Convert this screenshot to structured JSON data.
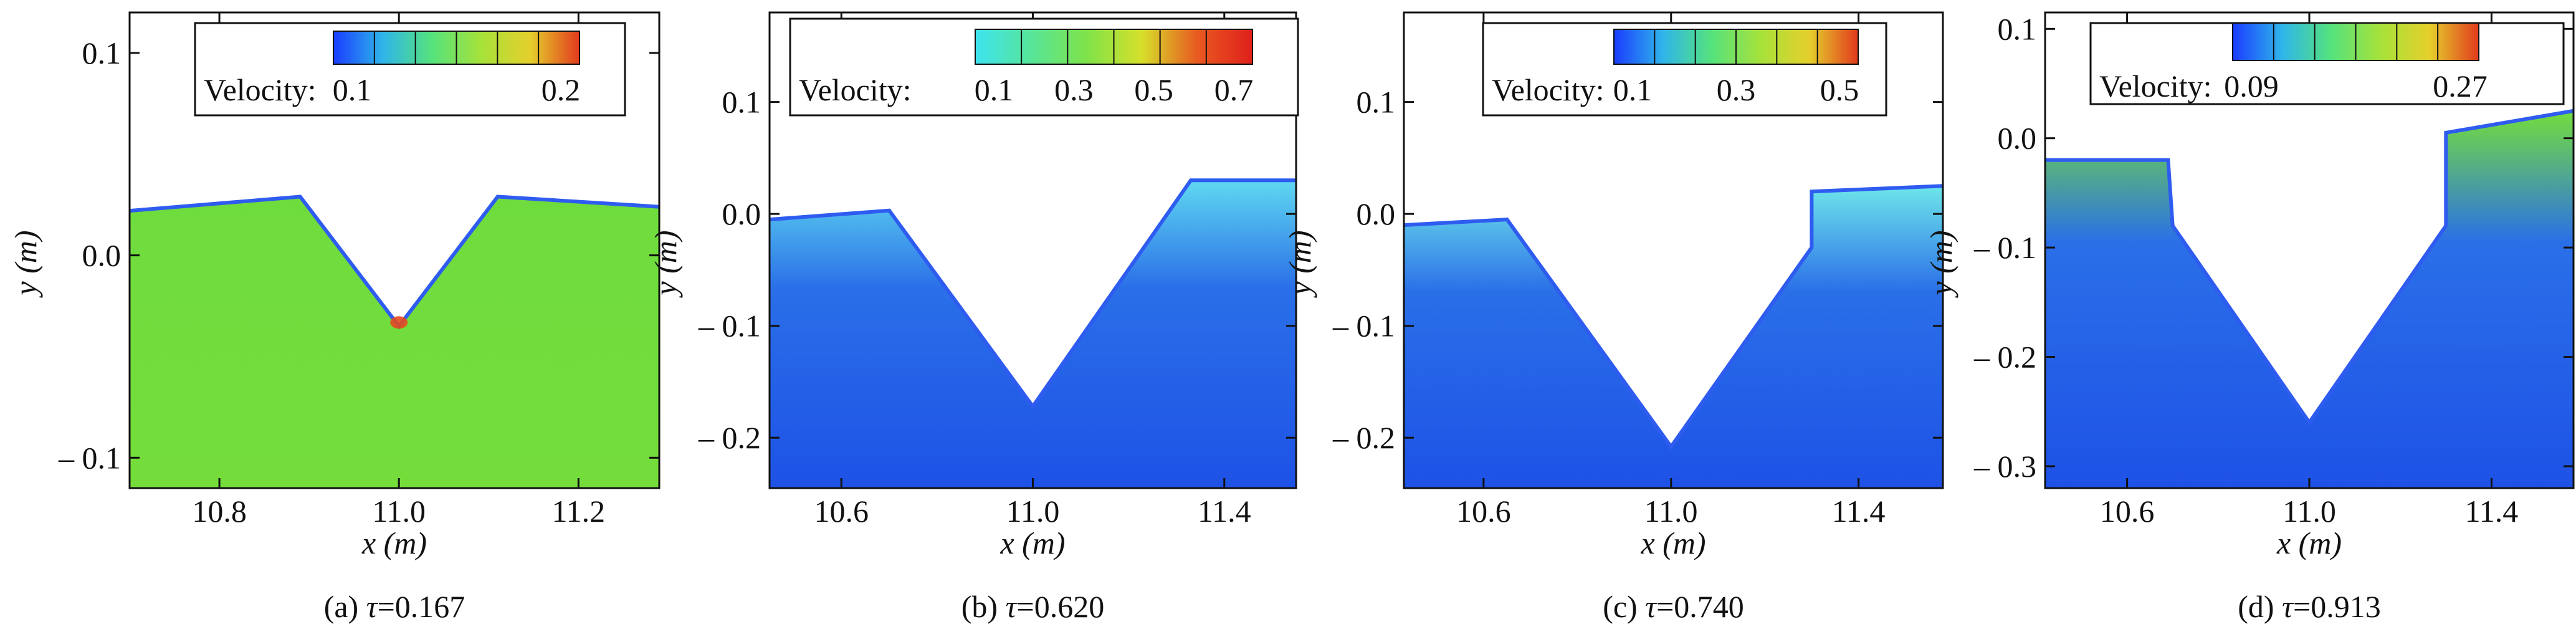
{
  "figure": {
    "x_label": "x (m)",
    "y_label": "y (m)",
    "colorbar_title": "Velocity:",
    "panels": [
      {
        "caption_prefix": "(a) ",
        "tau_symbol": "τ",
        "caption_value": "=0.167"
      },
      {
        "caption_prefix": "(b) ",
        "tau_symbol": "τ",
        "caption_value": "=0.620"
      },
      {
        "caption_prefix": "(c) ",
        "tau_symbol": "τ",
        "caption_value": "=0.740"
      },
      {
        "caption_prefix": "(d) ",
        "tau_symbol": "τ",
        "caption_value": "=0.913"
      }
    ]
  },
  "chart_data": [
    {
      "type": "heatmap",
      "panel": "(a)",
      "tau": 0.167,
      "xlim": [
        10.7,
        11.29
      ],
      "ylim": [
        -0.115,
        0.12
      ],
      "xticks": [
        10.8,
        11.0,
        11.2
      ],
      "xtick_labels": [
        "10.8",
        "11.0",
        "11.2"
      ],
      "yticks": [
        0.1,
        0.0,
        -0.1
      ],
      "ytick_labels": [
        "0.1",
        "0.0",
        "– 0.1"
      ],
      "colorbar": {
        "ticks": [
          0.1,
          0.2
        ],
        "tick_labels": [
          "0.1",
          "0.2"
        ],
        "colors": [
          "#1a3cff",
          "#2fb5ea",
          "#55e27d",
          "#a6e23a",
          "#e5cf2c",
          "#e23a1d"
        ]
      },
      "free_surface": [
        [
          10.7,
          0.022
        ],
        [
          10.89,
          0.029
        ],
        [
          11.0,
          -0.035
        ],
        [
          11.11,
          0.029
        ],
        [
          11.29,
          0.024
        ]
      ],
      "dominant_color": "#74dd3c",
      "accent_color": "#e34a1e"
    },
    {
      "type": "heatmap",
      "panel": "(b)",
      "tau": 0.62,
      "xlim": [
        10.45,
        11.55
      ],
      "ylim": [
        -0.245,
        0.18
      ],
      "xticks": [
        10.6,
        11.0,
        11.4
      ],
      "xtick_labels": [
        "10.6",
        "11.0",
        "11.4"
      ],
      "yticks": [
        0.1,
        0.0,
        -0.1,
        -0.2
      ],
      "ytick_labels": [
        "0.1",
        "0.0",
        "– 0.1",
        "– 0.2"
      ],
      "colorbar": {
        "ticks": [
          0.1,
          0.3,
          0.5,
          0.7
        ],
        "tick_labels": [
          "0.1",
          "0.3",
          "0.5",
          "0.7"
        ],
        "colors": [
          "#3ee3f0",
          "#56e59a",
          "#7ee34a",
          "#d6e02a",
          "#e85a20",
          "#e0201c"
        ]
      },
      "free_surface": [
        [
          10.45,
          -0.005
        ],
        [
          10.7,
          0.003
        ],
        [
          11.0,
          -0.172
        ],
        [
          11.33,
          0.03
        ],
        [
          11.55,
          0.03
        ]
      ],
      "dominant_color": "#2a6fe8",
      "accent_color": "#5fd8f0"
    },
    {
      "type": "heatmap",
      "panel": "(c)",
      "tau": 0.74,
      "xlim": [
        10.43,
        11.58
      ],
      "ylim": [
        -0.245,
        0.18
      ],
      "xticks": [
        10.6,
        11.0,
        11.4
      ],
      "xtick_labels": [
        "10.6",
        "11.0",
        "11.4"
      ],
      "yticks": [
        0.1,
        0.0,
        -0.1,
        -0.2
      ],
      "ytick_labels": [
        "0.1",
        "0.0",
        "– 0.1",
        "– 0.2"
      ],
      "colorbar": {
        "ticks": [
          0.1,
          0.3,
          0.5
        ],
        "tick_labels": [
          "0.1",
          "0.3",
          "0.5"
        ],
        "colors": [
          "#1a3cff",
          "#2fb5ea",
          "#55e27d",
          "#a6e23a",
          "#e5cf2c",
          "#e23a1d"
        ]
      },
      "free_surface": [
        [
          10.43,
          -0.01
        ],
        [
          10.65,
          -0.005
        ],
        [
          11.0,
          -0.208
        ],
        [
          11.3,
          -0.03
        ],
        [
          11.3,
          0.02
        ],
        [
          11.58,
          0.025
        ]
      ],
      "dominant_color": "#2a6fe8",
      "accent_color": "#6ee6ea"
    },
    {
      "type": "heatmap",
      "panel": "(d)",
      "tau": 0.913,
      "xlim": [
        10.42,
        11.58
      ],
      "ylim": [
        -0.32,
        0.115
      ],
      "xticks": [
        10.6,
        11.0,
        11.4
      ],
      "xtick_labels": [
        "10.6",
        "11.0",
        "11.4"
      ],
      "yticks": [
        0.1,
        0.0,
        -0.1,
        -0.2,
        -0.3
      ],
      "ytick_labels": [
        "0.1",
        "0.0",
        "– 0.1",
        "– 0.2",
        "– 0.3"
      ],
      "colorbar": {
        "ticks": [
          0.09,
          0.27
        ],
        "tick_labels": [
          "0.09",
          "0.27"
        ],
        "colors": [
          "#1a3cff",
          "#2fb5ea",
          "#55e27d",
          "#a6e23a",
          "#e5cf2c",
          "#e23a1d"
        ]
      },
      "free_surface": [
        [
          10.42,
          -0.02
        ],
        [
          10.69,
          -0.02
        ],
        [
          10.7,
          -0.08
        ],
        [
          11.0,
          -0.26
        ],
        [
          11.3,
          -0.08
        ],
        [
          11.3,
          0.005
        ],
        [
          11.58,
          0.025
        ]
      ],
      "dominant_color": "#2a6fe8",
      "accent_color": "#74dd3c"
    }
  ]
}
